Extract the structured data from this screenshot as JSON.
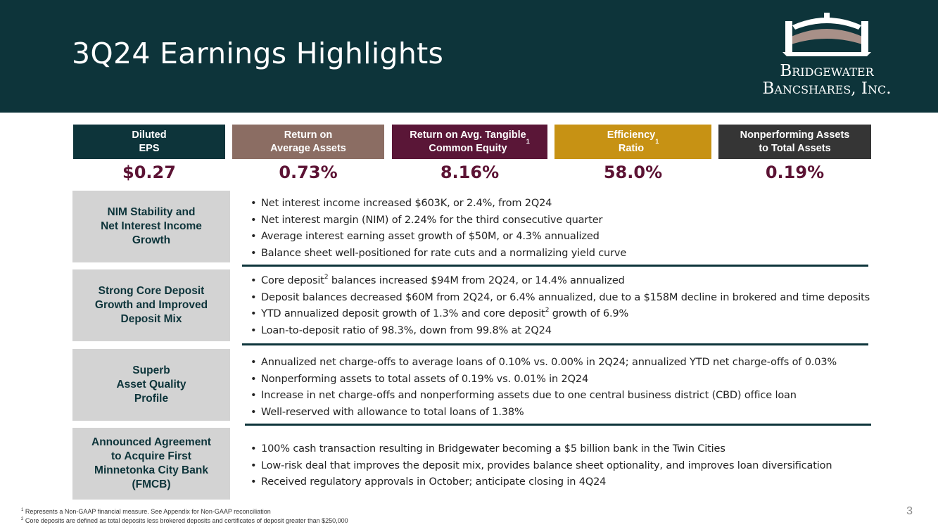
{
  "header": {
    "title": "3Q24 Earnings Highlights",
    "logo": {
      "line1": "Bridgewater",
      "line2": "Bancshares, Inc."
    }
  },
  "kpis": [
    {
      "label": "Diluted\nEPS",
      "sup": "",
      "value": "$0.27",
      "color": "#0d343a"
    },
    {
      "label": "Return on\nAverage Assets",
      "sup": "",
      "value": "0.73%",
      "color": "#8b6d63"
    },
    {
      "label": "Return on Avg. Tangible\nCommon Equity",
      "sup": "1",
      "value": "8.16%",
      "color": "#5a1637"
    },
    {
      "label": "Efficiency\nRatio",
      "sup": "1",
      "value": "58.0%",
      "color": "#c79214"
    },
    {
      "label": "Nonperforming Assets\nto Total Assets",
      "sup": "",
      "value": "0.19%",
      "color": "#353535"
    }
  ],
  "sections": [
    {
      "label": "NIM Stability and\nNet Interest Income\nGrowth",
      "bullets": [
        [
          "Net interest income increased $603K, or 2.4%, from 2Q24"
        ],
        [
          "Net interest margin (NIM) of 2.24% for the third consecutive quarter"
        ],
        [
          "Average interest earning asset growth of $50M, or 4.3% annualized"
        ],
        [
          "Balance sheet well-positioned for rate cuts and a normalizing yield curve"
        ]
      ]
    },
    {
      "label": "Strong Core Deposit\nGrowth and Improved\nDeposit Mix",
      "bullets": [
        [
          "Core deposit",
          "2",
          " balances increased $94M from 2Q24, or 14.4% annualized"
        ],
        [
          "Deposit balances decreased $60M from 2Q24, or 6.4% annualized, due to a $158M decline in brokered and time deposits"
        ],
        [
          "YTD annualized deposit growth of 1.3% and core deposit",
          "2",
          " growth of 6.9%"
        ],
        [
          "Loan-to-deposit ratio of 98.3%, down from 99.8% at 2Q24"
        ]
      ]
    },
    {
      "label": "Superb\nAsset Quality\nProfile",
      "bullets": [
        [
          "Annualized net charge-offs to average loans of 0.10% vs. 0.00% in 2Q24; annualized YTD net charge-offs of 0.03%"
        ],
        [
          "Nonperforming assets to total assets of 0.19% vs. 0.01% in 2Q24"
        ],
        [
          "Increase in net charge-offs and nonperforming assets due to one central business district (CBD) office loan"
        ],
        [
          "Well-reserved with allowance to total loans of 1.38%"
        ]
      ]
    },
    {
      "label": "Announced Agreement\nto Acquire First\nMinnetonka City Bank\n(FMCB)",
      "bullets": [
        [
          "100% cash transaction resulting in Bridgewater becoming a $5 billion bank in the Twin Cities"
        ],
        [
          "Low-risk deal that improves the deposit mix, provides balance sheet optionality, and improves loan diversification"
        ],
        [
          "Received regulatory approvals in October; anticipate closing in 4Q24"
        ]
      ]
    }
  ],
  "footnotes": [
    {
      "num": "1",
      "text": " Represents a Non-GAAP financial measure. See Appendix for Non-GAAP reconciliation"
    },
    {
      "num": "2",
      "text": " Core deposits are defined as total deposits less brokered deposits and certificates of deposit greater than $250,000"
    }
  ],
  "page_number": "3",
  "colors": {
    "header_bg": "#0d343a",
    "value_text": "#5c1334",
    "section_bg": "#d3d3d3"
  }
}
